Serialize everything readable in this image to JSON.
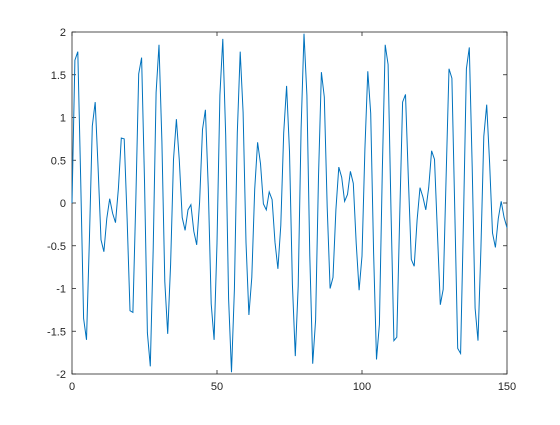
{
  "chart_data": {
    "type": "line",
    "color": "#0072bd",
    "x": [
      0,
      1,
      2,
      3,
      4,
      5,
      6,
      7,
      8,
      9,
      10,
      11,
      12,
      13,
      14,
      15,
      16,
      17,
      18,
      19,
      20,
      21,
      22,
      23,
      24,
      25,
      26,
      27,
      28,
      29,
      30,
      31,
      32,
      33,
      34,
      35,
      36,
      37,
      38,
      39,
      40,
      41,
      42,
      43,
      44,
      45,
      46,
      47,
      48,
      49,
      50,
      51,
      52,
      53,
      54,
      55,
      56,
      57,
      58,
      59,
      60,
      61,
      62,
      63,
      64,
      65,
      66,
      67,
      68,
      69,
      70,
      71,
      72,
      73,
      74,
      75,
      76,
      77,
      78,
      79,
      80,
      81,
      82,
      83,
      84,
      85,
      86,
      87,
      88,
      89,
      90,
      91,
      92,
      93,
      94,
      95,
      96,
      97,
      98,
      99,
      100,
      101,
      102,
      103,
      104,
      105,
      106,
      107,
      108,
      109,
      110,
      111,
      112,
      113,
      114,
      115,
      116,
      117,
      118,
      119,
      120,
      121,
      122,
      123,
      124,
      125,
      126,
      127,
      128,
      129,
      130,
      131,
      132,
      133,
      134,
      135,
      136,
      137,
      138,
      139,
      140,
      141,
      142,
      143,
      144,
      145,
      146,
      147,
      148,
      149,
      150
    ],
    "values": [
      0,
      1.67,
      1.77,
      0.27,
      -1.35,
      -1.6,
      -0.43,
      0.9,
      1.18,
      0.41,
      -0.43,
      -0.57,
      -0.18,
      0.05,
      -0.12,
      -0.23,
      0.17,
      0.76,
      0.75,
      -0.18,
      -1.26,
      -1.28,
      0.02,
      1.51,
      1.7,
      0.26,
      -1.52,
      -1.91,
      -0.54,
      1.29,
      1.85,
      0.72,
      -0.92,
      -1.53,
      -0.72,
      0.51,
      0.98,
      0.5,
      -0.17,
      -0.32,
      -0.08,
      -0.02,
      -0.33,
      -0.49,
      0.01,
      0.86,
      1.09,
      0.17,
      -1.18,
      -1.6,
      -0.47,
      1.26,
      1.92,
      0.79,
      -1.12,
      -1.98,
      -1.01,
      0.82,
      1.77,
      1.06,
      -0.46,
      -1.31,
      -0.87,
      0.16,
      0.71,
      0.46,
      -0.01,
      -0.08,
      0.13,
      0.04,
      -0.46,
      -0.77,
      -0.26,
      0.82,
      1.37,
      0.6,
      -0.95,
      -1.79,
      -0.97,
      0.87,
      1.98,
      1.26,
      -0.62,
      -1.88,
      -1.37,
      0.31,
      1.53,
      1.24,
      -0.05,
      -1,
      -0.87,
      -0.08,
      0.42,
      0.3,
      0.02,
      0.1,
      0.37,
      0.23,
      -0.47,
      -1.02,
      -0.62,
      0.63,
      1.54,
      1.05,
      -0.58,
      -1.83,
      -1.42,
      0.37,
      1.85,
      1.62,
      -0.09,
      -1.61,
      -1.57,
      -0.16,
      1.18,
      1.27,
      0.27,
      -0.66,
      -0.74,
      -0.2,
      0.18,
      0.07,
      -0.08,
      0.18,
      0.61,
      0.51,
      -0.34,
      -1.19,
      -1.01,
      0.3,
      1.57,
      1.46,
      -0.1,
      -1.7,
      -1.76,
      -0.18,
      1.57,
      1.82,
      0.42,
      -1.23,
      -1.61,
      -0.54,
      0.78,
      1.15,
      0.47,
      -0.35,
      -0.52,
      -0.18,
      0.02,
      -0.17,
      -0.29
    ],
    "xlim": [
      0,
      150
    ],
    "xticks": [
      0,
      50,
      100,
      150
    ],
    "ylim": [
      -2,
      2
    ],
    "yticks": [
      -2,
      -1.5,
      -1,
      -0.5,
      0,
      0.5,
      1,
      1.5,
      2
    ]
  }
}
